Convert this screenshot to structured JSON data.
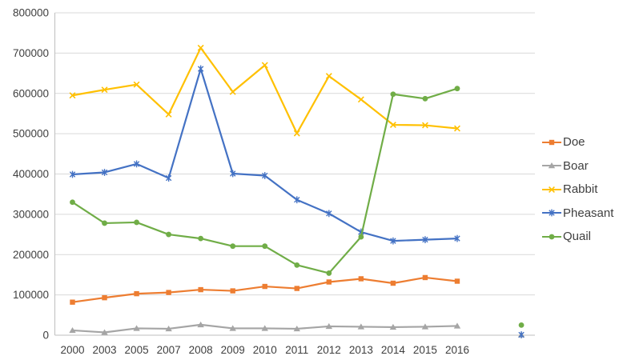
{
  "chart_data": {
    "type": "line",
    "title": "",
    "xlabel": "",
    "ylabel": "",
    "categories": [
      "2000",
      "2003",
      "2005",
      "2007",
      "2008",
      "2009",
      "2010",
      "2011",
      "2012",
      "2013",
      "2014",
      "2015",
      "2016"
    ],
    "series": [
      {
        "name": "Doe",
        "color": "#ED7D31",
        "marker": "square",
        "values": [
          82000,
          93000,
          103000,
          106000,
          113000,
          110000,
          121000,
          116000,
          132000,
          140000,
          129000,
          143000,
          134000
        ]
      },
      {
        "name": "Boar",
        "color": "#A5A5A5",
        "marker": "triangle",
        "values": [
          12000,
          7000,
          17000,
          16000,
          26000,
          17000,
          17000,
          16000,
          22000,
          21000,
          20000,
          21000,
          23000
        ]
      },
      {
        "name": "Rabbit",
        "color": "#FFC000",
        "marker": "x",
        "values": [
          595000,
          609000,
          622000,
          548000,
          713000,
          604000,
          670000,
          501000,
          643000,
          585000,
          522000,
          521000,
          513000
        ]
      },
      {
        "name": "Pheasant",
        "color": "#4472C4",
        "marker": "asterisk",
        "values": [
          399000,
          404000,
          425000,
          390000,
          661000,
          401000,
          396000,
          336000,
          302000,
          256000,
          234000,
          237000,
          240000
        ]
      },
      {
        "name": "Quail",
        "color": "#70AD47",
        "marker": "circle",
        "values": [
          330000,
          278000,
          280000,
          250000,
          240000,
          221000,
          221000,
          174000,
          154000,
          244000,
          598000,
          587000,
          612000
        ]
      }
    ],
    "extra_points": [
      {
        "series": "Quail",
        "value": 25000,
        "category_offset": 2
      },
      {
        "series": "Boar",
        "value": 1000,
        "category_offset": 2
      },
      {
        "series": "Pheasant",
        "value": 1000,
        "category_offset": 2
      }
    ],
    "ylim": [
      0,
      800000
    ],
    "ytick_step": 100000,
    "ytick_labels": [
      "0",
      "100000",
      "200000",
      "300000",
      "400000",
      "500000",
      "600000",
      "700000",
      "800000"
    ],
    "grid": "horizontal",
    "legend_position": "right",
    "legend": [
      "Doe",
      "Boar",
      "Rabbit",
      "Pheasant",
      "Quail"
    ]
  },
  "style": {
    "background": "#FFFFFF",
    "gridline_color": "#D9D9D9",
    "axis_line_color": "#BFBFBF",
    "label_color": "#3F3F3F"
  }
}
